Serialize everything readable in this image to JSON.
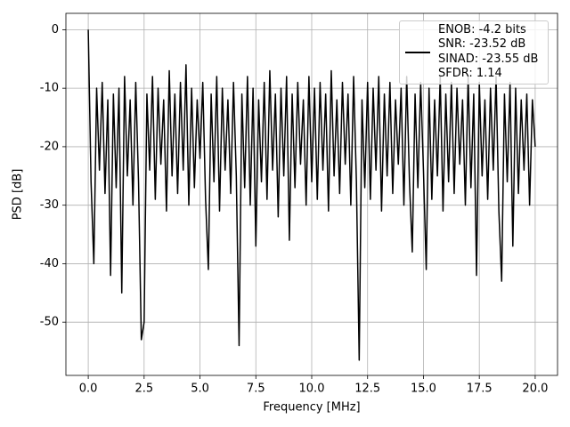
{
  "chart_data": {
    "type": "line",
    "xlabel": "Frequency [MHz]",
    "ylabel": "PSD [dB]",
    "xlim": [
      -1.0,
      21.0
    ],
    "ylim": [
      -59.1,
      2.8
    ],
    "xticks": [
      {
        "value": 0,
        "label": "0.0"
      },
      2.5,
      {
        "value": 5,
        "label": "5.0"
      },
      7.5,
      {
        "value": 10,
        "label": "10.0"
      },
      12.5,
      {
        "value": 15,
        "label": "15.0"
      },
      17.5,
      {
        "value": 20,
        "label": "20.0"
      }
    ],
    "yticks": [
      0,
      -10,
      -20,
      -30,
      -40,
      -50
    ],
    "grid": true,
    "legend_loc": "upper right",
    "x": [
      0,
      0.125,
      0.25,
      0.375,
      0.5,
      0.625,
      0.75,
      0.875,
      1,
      1.125,
      1.25,
      1.375,
      1.5,
      1.625,
      1.75,
      1.875,
      2,
      2.125,
      2.25,
      2.375,
      2.5,
      2.625,
      2.75,
      2.875,
      3,
      3.125,
      3.25,
      3.375,
      3.5,
      3.625,
      3.75,
      3.875,
      4,
      4.125,
      4.25,
      4.375,
      4.5,
      4.625,
      4.75,
      4.875,
      5,
      5.125,
      5.25,
      5.375,
      5.5,
      5.625,
      5.75,
      5.875,
      6,
      6.125,
      6.25,
      6.375,
      6.5,
      6.625,
      6.75,
      6.875,
      7,
      7.125,
      7.25,
      7.375,
      7.5,
      7.625,
      7.75,
      7.875,
      8,
      8.125,
      8.25,
      8.375,
      8.5,
      8.625,
      8.75,
      8.875,
      9,
      9.125,
      9.25,
      9.375,
      9.5,
      9.625,
      9.75,
      9.875,
      10,
      10.125,
      10.25,
      10.375,
      10.5,
      10.625,
      10.75,
      10.875,
      11,
      11.125,
      11.25,
      11.375,
      11.5,
      11.625,
      11.75,
      11.875,
      12,
      12.125,
      12.25,
      12.375,
      12.5,
      12.625,
      12.75,
      12.875,
      13,
      13.125,
      13.25,
      13.375,
      13.5,
      13.625,
      13.75,
      13.875,
      14,
      14.125,
      14.25,
      14.375,
      14.5,
      14.625,
      14.75,
      14.875,
      15,
      15.125,
      15.25,
      15.375,
      15.5,
      15.625,
      15.75,
      15.875,
      16,
      16.125,
      16.25,
      16.375,
      16.5,
      16.625,
      16.75,
      16.875,
      17,
      17.125,
      17.25,
      17.375,
      17.5,
      17.625,
      17.75,
      17.875,
      18,
      18.125,
      18.25,
      18.375,
      18.5,
      18.625,
      18.75,
      18.875,
      19,
      19.125,
      19.25,
      19.375,
      19.5,
      19.625,
      19.75,
      19.875,
      20
    ],
    "series": [
      {
        "name": "ENOB: -4.2 bits\nSNR: -23.52 dB\nSINAD: -23.55 dB\nSFDR: 1.14",
        "color": "#000000",
        "values": [
          0,
          -26,
          -40,
          -10,
          -24,
          -9,
          -28,
          -12,
          -42,
          -11,
          -27,
          -10,
          -45,
          -8,
          -25,
          -12,
          -30,
          -9,
          -26,
          -53,
          -50,
          -11,
          -24,
          -8,
          -29,
          -10,
          -23,
          -12,
          -31,
          -7,
          -25,
          -11,
          -28,
          -9,
          -24,
          -6,
          -30,
          -10,
          -27,
          -12,
          -22,
          -9,
          -29,
          -41,
          -11,
          -26,
          -8,
          -31,
          -10,
          -24,
          -12,
          -28,
          -9,
          -25,
          -54,
          -11,
          -27,
          -8,
          -30,
          -10,
          -37,
          -12,
          -26,
          -9,
          -29,
          -7,
          -24,
          -11,
          -32,
          -10,
          -25,
          -8,
          -36,
          -11,
          -27,
          -9,
          -23,
          -12,
          -30,
          -8,
          -26,
          -10,
          -29,
          -9,
          -24,
          -11,
          -31,
          -7,
          -25,
          -12,
          -28,
          -9,
          -23,
          -11,
          -30,
          -8,
          -26,
          -56.5,
          -12,
          -27,
          -9,
          -29,
          -10,
          -24,
          -8,
          -31,
          -11,
          -25,
          -9,
          -28,
          -12,
          -23,
          -10,
          -30,
          -8,
          -26,
          -38,
          -11,
          -27,
          -9,
          -24,
          -41,
          -10,
          -29,
          -12,
          -25,
          -8,
          -31,
          -11,
          -26,
          -9,
          -28,
          -10,
          -23,
          -12,
          -30,
          -8,
          -27,
          -11,
          -42,
          -9,
          -25,
          -12,
          -29,
          -10,
          -24,
          -8,
          -31,
          -43,
          -11,
          -26,
          -9,
          -37,
          -10,
          -28,
          -12,
          -24,
          -11,
          -30,
          -12,
          -20
        ]
      }
    ]
  }
}
